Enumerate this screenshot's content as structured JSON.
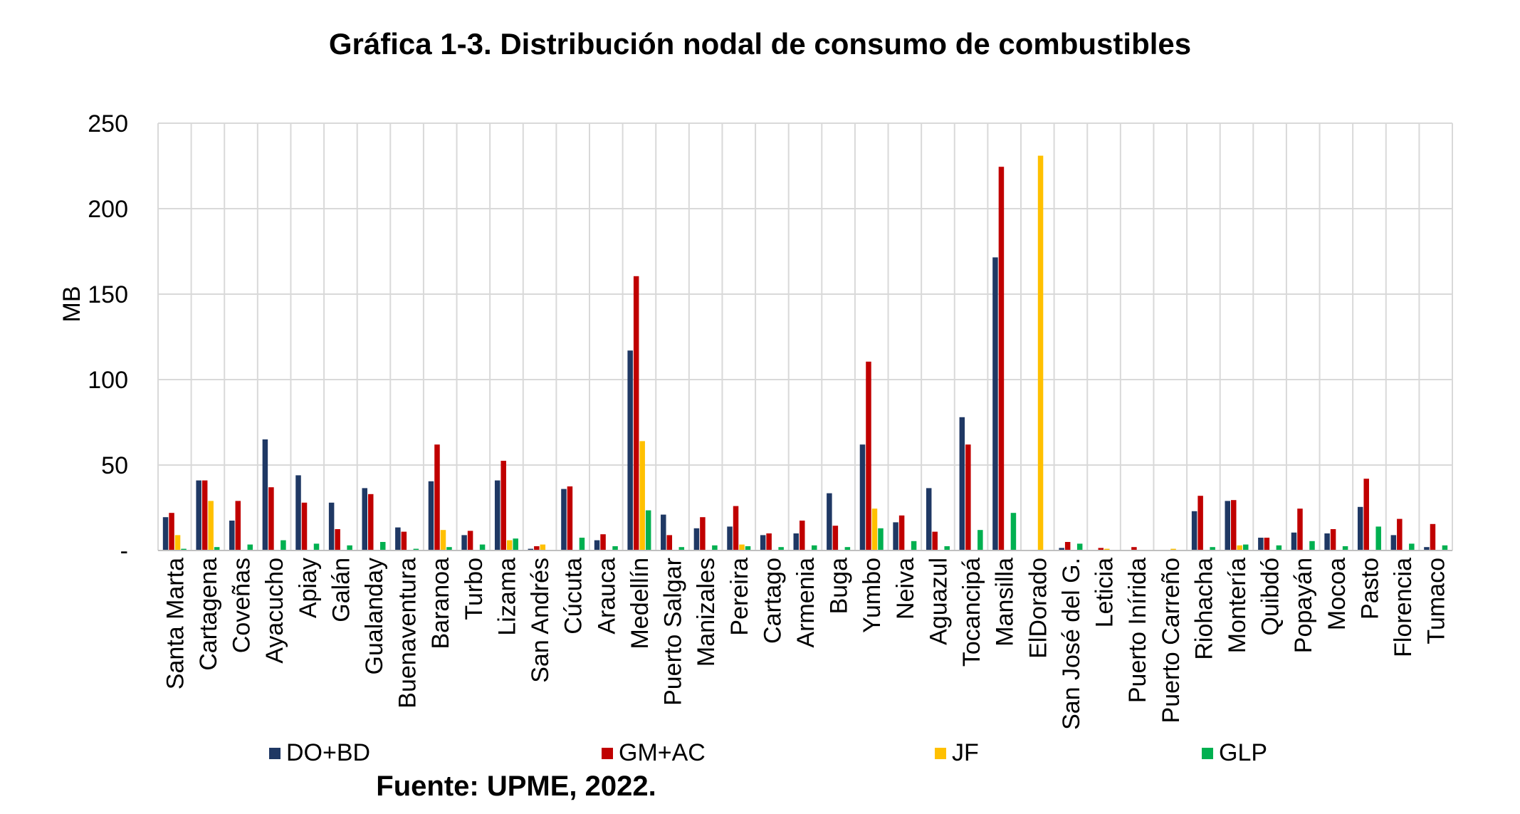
{
  "title": "Gráfica 1-3. Distribución nodal de consumo de combustibles",
  "source": "Fuente: UPME, 2022.",
  "colors": {
    "DO+BD": "#1f3864",
    "GM+AC": "#c00000",
    "JF": "#ffc000",
    "GLP": "#00b050",
    "grid": "#d9d9d9"
  },
  "chart_data": {
    "type": "bar",
    "title": "Gráfica 1-3. Distribución nodal de consumo de combustibles",
    "ylabel": "MB",
    "xlabel": "",
    "ylim": [
      0,
      250
    ],
    "yticks": [
      0,
      50,
      100,
      150,
      200,
      250
    ],
    "ytick_labels": [
      "-",
      "50",
      "100",
      "150",
      "200",
      "250"
    ],
    "grid": true,
    "legend_position": "bottom",
    "categories": [
      "Santa Marta",
      "Cartagena",
      "Coveñas",
      "Ayacucho",
      "Apiay",
      "Galán",
      "Gualanday",
      "Buenaventura",
      "Baranoa",
      "Turbo",
      "Lizama",
      "San Andrés",
      "Cúcuta",
      "Arauca",
      "Medellín",
      "Puerto Salgar",
      "Manizales",
      "Pereira",
      "Cartago",
      "Armenia",
      "Buga",
      "Yumbo",
      "Neiva",
      "Aguazul",
      "Tocancipá",
      "Mansilla",
      "ElDorado",
      "San José del G.",
      "Leticia",
      "Puerto Inírida",
      "Puerto Carreño",
      "Riohacha",
      "Montería",
      "Quibdó",
      "Popayán",
      "Mocoa",
      "Pasto",
      "Florencia",
      "Tumaco"
    ],
    "series": [
      {
        "name": "DO+BD",
        "values": [
          19.5,
          41,
          17.5,
          65,
          44,
          28,
          36.5,
          13.5,
          40.5,
          9,
          41,
          1,
          36,
          6,
          117,
          21,
          13,
          14,
          9,
          10,
          33.5,
          62,
          16.5,
          36.5,
          78,
          171.5,
          0,
          1.5,
          0,
          0,
          0,
          23,
          29,
          7.5,
          10.5,
          10,
          25.5,
          9,
          2
        ]
      },
      {
        "name": "GM+AC",
        "values": [
          22,
          41,
          29,
          37,
          28,
          12.5,
          33,
          11,
          62,
          11.5,
          52.5,
          2.5,
          37.5,
          9.5,
          160.5,
          9,
          19.5,
          26,
          10,
          17.5,
          14.5,
          110.5,
          20.5,
          11,
          62,
          224.5,
          0,
          5,
          1.5,
          2,
          0,
          32,
          29.5,
          7.5,
          24.5,
          12.5,
          42,
          18.5,
          15.5
        ]
      },
      {
        "name": "JF",
        "values": [
          9,
          29,
          0,
          0,
          0,
          0,
          0,
          0,
          12,
          0,
          6,
          3.5,
          0,
          0,
          64,
          0,
          0,
          3.5,
          0,
          0,
          0,
          24.5,
          0,
          0,
          0,
          0,
          231,
          0,
          1,
          0,
          1,
          0,
          3,
          0,
          0,
          0,
          0,
          0,
          0
        ]
      },
      {
        "name": "GLP",
        "values": [
          1,
          2,
          3.5,
          6,
          4,
          3,
          5,
          1,
          2,
          3.5,
          7,
          0,
          7.5,
          2.5,
          23.5,
          2,
          3,
          2.5,
          2,
          3,
          2,
          13,
          5.5,
          2.5,
          12,
          22,
          0,
          4,
          0,
          0,
          0,
          2,
          3.5,
          3,
          5.5,
          2.5,
          14,
          4,
          3
        ]
      }
    ]
  }
}
